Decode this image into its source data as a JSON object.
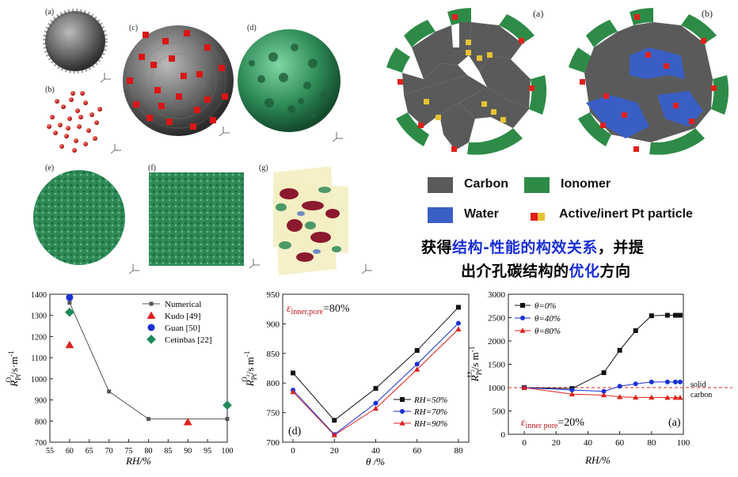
{
  "top_left": {
    "labels": [
      "(a)",
      "(b)",
      "(c)",
      "(d)",
      "(e)",
      "(f)",
      "(g)"
    ]
  },
  "top_right": {
    "panel_a": "(a)",
    "panel_b": "(b)",
    "legend": {
      "carbon": "Carbon",
      "ionomer": "Ionomer",
      "water": "Water",
      "pt": "Active/inert Pt particle"
    },
    "colors": {
      "carbon": "#5a5a5a",
      "ionomer": "#2e8b47",
      "water": "#3a5fc4",
      "pt_active": "#e0201c",
      "pt_inert": "#e8c233"
    }
  },
  "caption": {
    "line1_a": "获得",
    "line1_hl1": "结构-性能的构效关系",
    "line1_b": "，并提",
    "line2_a": "出介孔碳结构的",
    "line2_hl": "优化",
    "line2_b": "方向"
  },
  "chart_data": [
    {
      "type": "scatter",
      "ylabel_main": "R",
      "ylabel_unit": "/s·m",
      "xlabel": "RH/%",
      "xlim": [
        55,
        100
      ],
      "ylim": [
        700,
        1400
      ],
      "xticks": [
        "55",
        "60",
        "65",
        "70",
        "75",
        "80",
        "85",
        "90",
        "95",
        "100"
      ],
      "yticks": [
        "700",
        "800",
        "900",
        "1000",
        "1100",
        "1200",
        "1300",
        "1400"
      ],
      "series": [
        {
          "name": "Numerical",
          "marker": "square",
          "color": "#555555",
          "x": [
            60,
            70,
            80,
            100
          ],
          "y": [
            1360,
            940,
            810,
            810
          ]
        },
        {
          "name": "Kudo [49]",
          "marker": "triangle",
          "color": "#e0201c",
          "x": [
            60,
            90
          ],
          "y": [
            1160,
            795
          ]
        },
        {
          "name": "Guan [50]",
          "marker": "circle",
          "color": "#1a2fd6",
          "x": [
            60
          ],
          "y": [
            1385
          ]
        },
        {
          "name": "Cetinbas [22]",
          "marker": "diamond",
          "color": "#1e8a5a",
          "x": [
            60,
            100
          ],
          "y": [
            1315,
            875
          ]
        }
      ]
    },
    {
      "type": "line",
      "annotation": "=80%",
      "annotation_symbol": "ε",
      "annotation_sub": "inner,pore",
      "panel": "(d)",
      "ylabel_main": "R",
      "ylabel_unit": "/s m",
      "xlabel": "θ /%",
      "xlim": [
        -5,
        85
      ],
      "ylim": [
        700,
        950
      ],
      "xticks": [
        "0",
        "20",
        "40",
        "60",
        "80"
      ],
      "yticks": [
        "700",
        "750",
        "800",
        "850",
        "900",
        "950"
      ],
      "series": [
        {
          "name": "RH=50%",
          "marker": "square",
          "color": "#111111",
          "x": [
            0,
            20,
            40,
            60,
            80
          ],
          "y": [
            817,
            737,
            791,
            855,
            928
          ]
        },
        {
          "name": "RH=70%",
          "marker": "circle",
          "color": "#1a2fd6",
          "x": [
            0,
            20,
            40,
            60,
            80
          ],
          "y": [
            788,
            713,
            766,
            832,
            901
          ]
        },
        {
          "name": "RH=90%",
          "marker": "triangle",
          "color": "#e0201c",
          "x": [
            0,
            20,
            40,
            60,
            80
          ],
          "y": [
            785,
            712,
            757,
            823,
            891
          ]
        }
      ]
    },
    {
      "type": "line",
      "annotation": "=20%",
      "annotation_symbol": "ε",
      "annotation_sub": "inner pore",
      "panel": "(a)",
      "ylabel_main": "R",
      "ylabel_unit": "/s m",
      "xlabel": "RH/%",
      "xlim": [
        -10,
        100
      ],
      "ylim": [
        0,
        3000
      ],
      "xticks": [
        "0",
        "20",
        "40",
        "60",
        "80",
        "100"
      ],
      "yticks": [
        "0",
        "500",
        "1000",
        "1500",
        "2000",
        "2500",
        "3000"
      ],
      "reference": {
        "label1": "solid",
        "label2": "carbon",
        "y": 1000,
        "color": "#e0201c"
      },
      "series": [
        {
          "name": "θ=0%",
          "marker": "square",
          "color": "#111111",
          "x": [
            0,
            30,
            50,
            60,
            70,
            80,
            90,
            95,
            98
          ],
          "y": [
            1000,
            980,
            1320,
            1800,
            2220,
            2540,
            2550,
            2550,
            2550
          ]
        },
        {
          "name": "θ=40%",
          "marker": "circle",
          "color": "#1a2fd6",
          "x": [
            0,
            30,
            50,
            60,
            70,
            80,
            90,
            95,
            98
          ],
          "y": [
            1000,
            950,
            920,
            1030,
            1080,
            1120,
            1120,
            1120,
            1120
          ]
        },
        {
          "name": "θ=80%",
          "marker": "triangle",
          "color": "#e0201c",
          "x": [
            0,
            30,
            50,
            60,
            70,
            80,
            90,
            95,
            98
          ],
          "y": [
            1000,
            860,
            840,
            800,
            790,
            790,
            785,
            785,
            785
          ]
        }
      ]
    }
  ]
}
